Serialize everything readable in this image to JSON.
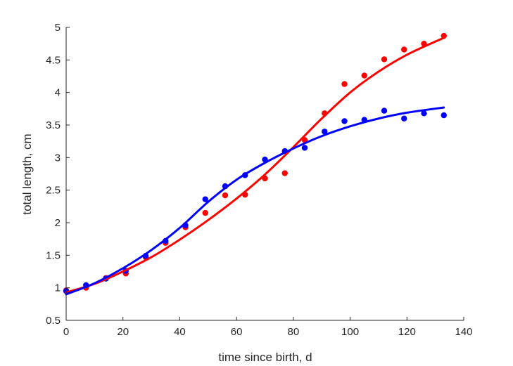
{
  "chart_data": {
    "type": "scatter",
    "xlabel": "time since birth, d",
    "ylabel": "total length, cm",
    "xlim": [
      0,
      140
    ],
    "ylim": [
      0.5,
      5
    ],
    "xticks": [
      0,
      20,
      40,
      60,
      80,
      100,
      120,
      140
    ],
    "xtick_labels": [
      "0",
      "20",
      "40",
      "60",
      "80",
      "100",
      "120",
      "140"
    ],
    "yticks": [
      0.5,
      1,
      1.5,
      2,
      2.5,
      3,
      3.5,
      4,
      4.5,
      5
    ],
    "ytick_labels": [
      "0.5",
      "1",
      "1.5",
      "2",
      "2.5",
      "3",
      "3.5",
      "4",
      "4.5",
      "5"
    ],
    "grid": false,
    "series": [
      {
        "color": "#ff0000",
        "points": [
          [
            0,
            0.96
          ],
          [
            7,
            1.0
          ],
          [
            14,
            1.15
          ],
          [
            21,
            1.22
          ],
          [
            28,
            1.47
          ],
          [
            35,
            1.69
          ],
          [
            42,
            1.93
          ],
          [
            49,
            2.15
          ],
          [
            56,
            2.42
          ],
          [
            63,
            2.43
          ],
          [
            70,
            2.68
          ],
          [
            77,
            2.76
          ],
          [
            84,
            3.27
          ],
          [
            91,
            3.68
          ],
          [
            98,
            4.13
          ],
          [
            105,
            4.26
          ],
          [
            112,
            4.51
          ],
          [
            119,
            4.66
          ],
          [
            126,
            4.75
          ],
          [
            133,
            4.87
          ]
        ],
        "fit": [
          [
            0,
            0.93
          ],
          [
            10,
            1.06
          ],
          [
            20,
            1.25
          ],
          [
            30,
            1.47
          ],
          [
            40,
            1.74
          ],
          [
            50,
            2.04
          ],
          [
            60,
            2.37
          ],
          [
            70,
            2.74
          ],
          [
            80,
            3.16
          ],
          [
            90,
            3.6
          ],
          [
            100,
            4.0
          ],
          [
            110,
            4.32
          ],
          [
            120,
            4.58
          ],
          [
            133,
            4.84
          ]
        ]
      },
      {
        "color": "#0000ff",
        "points": [
          [
            0,
            0.95
          ],
          [
            7,
            1.04
          ],
          [
            14,
            1.14
          ],
          [
            21,
            1.26
          ],
          [
            28,
            1.49
          ],
          [
            35,
            1.72
          ],
          [
            42,
            1.96
          ],
          [
            49,
            2.36
          ],
          [
            56,
            2.56
          ],
          [
            63,
            2.73
          ],
          [
            70,
            2.97
          ],
          [
            77,
            3.1
          ],
          [
            84,
            3.15
          ],
          [
            91,
            3.4
          ],
          [
            98,
            3.56
          ],
          [
            105,
            3.58
          ],
          [
            112,
            3.72
          ],
          [
            119,
            3.6
          ],
          [
            126,
            3.68
          ],
          [
            133,
            3.65
          ]
        ],
        "fit": [
          [
            0,
            0.9
          ],
          [
            10,
            1.07
          ],
          [
            20,
            1.3
          ],
          [
            30,
            1.58
          ],
          [
            40,
            1.92
          ],
          [
            50,
            2.32
          ],
          [
            60,
            2.66
          ],
          [
            70,
            2.92
          ],
          [
            80,
            3.14
          ],
          [
            90,
            3.33
          ],
          [
            100,
            3.48
          ],
          [
            110,
            3.6
          ],
          [
            120,
            3.69
          ],
          [
            133,
            3.77
          ]
        ]
      }
    ]
  }
}
